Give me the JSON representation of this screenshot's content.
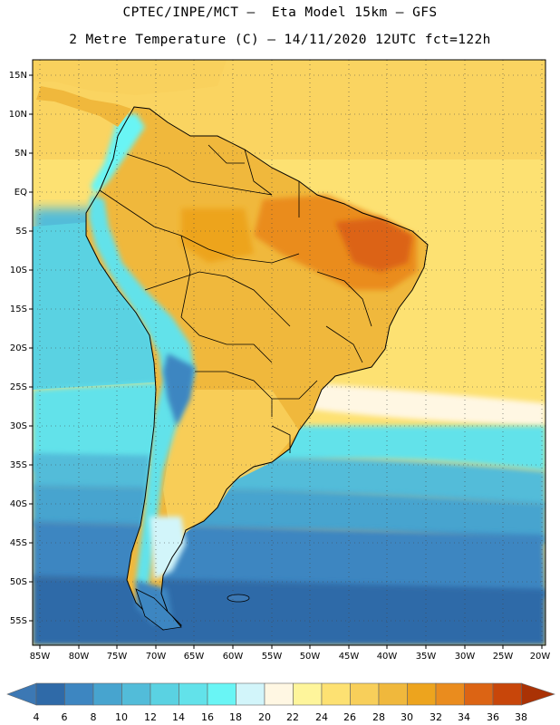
{
  "title": {
    "line1": "CPTEC/INPE/MCT –  Eta Model 15km – GFS",
    "line2": "2 Metre Temperature (C) – 14/11/2020 12UTC fct=122h"
  },
  "axes": {
    "lat_labels": [
      "15N",
      "10N",
      "5N",
      "EQ",
      "5S",
      "10S",
      "15S",
      "20S",
      "25S",
      "30S",
      "35S",
      "40S",
      "45S",
      "50S",
      "55S"
    ],
    "lon_labels": [
      "85W",
      "80W",
      "75W",
      "70W",
      "65W",
      "60W",
      "55W",
      "50W",
      "45W",
      "40W",
      "35W",
      "30W",
      "25W",
      "20W"
    ],
    "lat_range": [
      "16N",
      "57S"
    ],
    "lon_range": [
      "86W",
      "20W"
    ],
    "grid": "dotted"
  },
  "colorbar": {
    "labels": [
      "4",
      "6",
      "8",
      "10",
      "12",
      "14",
      "16",
      "18",
      "20",
      "22",
      "24",
      "26",
      "28",
      "30",
      "32",
      "34",
      "36",
      "38"
    ],
    "colors": [
      "#3c78b4",
      "#2f6aa8",
      "#3d86c1",
      "#47a4cf",
      "#52bcd9",
      "#5ad2e2",
      "#62e2ea",
      "#69f5f5",
      "#d2f5fa",
      "#fff7e3",
      "#fef59b",
      "#fde172",
      "#f8cf5a",
      "#f0b83c",
      "#eda41e",
      "#ea8c1e",
      "#dc6414",
      "#c8460a",
      "#aa3205"
    ],
    "under_color": "#3c78b4",
    "over_color": "#aa3205"
  },
  "field_colors": {
    "ocean_south": "#2f6aa8",
    "ocean_mid": "#3d86c1",
    "ocean_cool": "#52bcd9",
    "ocean_warm": "#fde172",
    "land_hot": "#f0b83c",
    "land_very_hot": "#dc6414",
    "andes": "#3d86c1"
  }
}
